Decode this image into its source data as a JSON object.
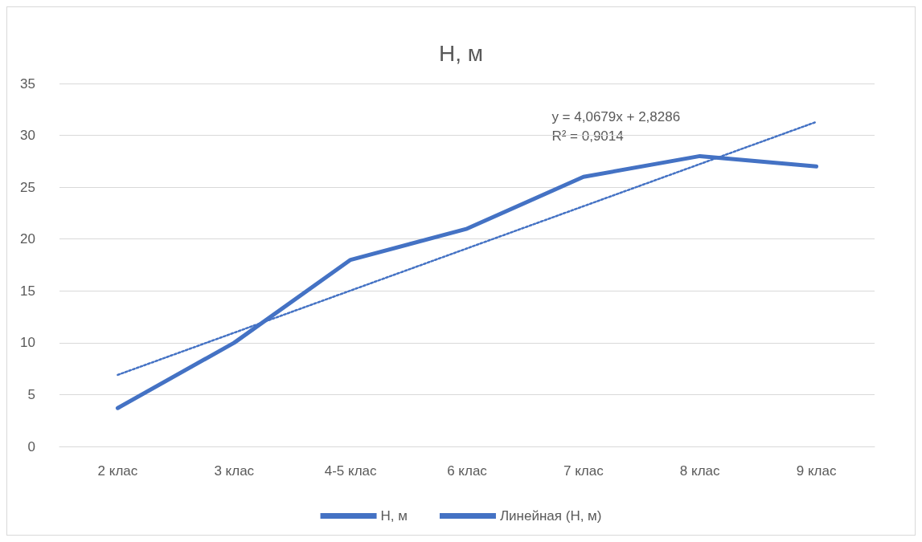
{
  "chart_data": {
    "type": "line",
    "title": "Н, м",
    "categories": [
      "2 клас",
      "3 клас",
      "4-5 клас",
      "6 клас",
      "7 клас",
      "8 клас",
      "9 клас"
    ],
    "series": [
      {
        "name": "Н, м",
        "color": "#4472c4",
        "values": [
          3.7,
          10,
          18,
          21,
          26,
          28,
          27
        ],
        "line_style": "solid"
      },
      {
        "name": "Линейная (Н, м)",
        "type": "line",
        "color": "#4472c4",
        "x": [
          "2 клас",
          "9 клас"
        ],
        "values": [
          6.9,
          31.3
        ],
        "line_style": "dotted"
      }
    ],
    "annotations": [
      "y = 4,0679x + 2,8286",
      "R² = 0,9014"
    ],
    "ylim": [
      0,
      35
    ],
    "yticks": [
      0,
      5,
      10,
      15,
      20,
      25,
      30,
      35
    ],
    "grid": "y",
    "legend": "bottom",
    "marker": "none"
  }
}
